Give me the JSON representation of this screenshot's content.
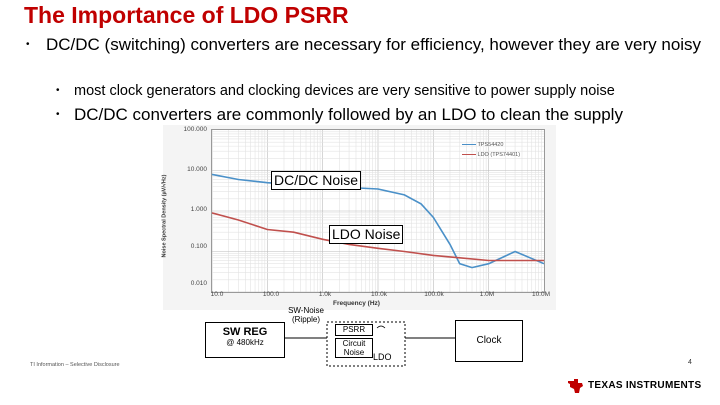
{
  "slide": {
    "title": "The Importance of LDO PSRR",
    "bullets": [
      {
        "bullet": "•",
        "text": "DC/DC (switching) converters are necessary for efficiency, however they are very noisy"
      },
      {
        "bullet": "•",
        "text": "most clock generators and clocking devices are very sensitive to power supply noise"
      },
      {
        "bullet": "•",
        "text": "DC/DC converters are commonly followed by an LDO to clean the supply"
      }
    ]
  },
  "chart": {
    "ylabel": "Noise Spectral Density (µV/√Hz)",
    "xlabel": "Frequency (Hz)",
    "yticks": [
      "100.000",
      "10.000",
      "1.000",
      "0.100",
      "0.010"
    ],
    "xticks": [
      "10.0",
      "100.0",
      "1.0k",
      "10.0k",
      "100.0k",
      "1.0M",
      "10.0M"
    ],
    "legend": [
      "TPS54420",
      "LDO (TPS74401)"
    ],
    "callouts": {
      "dcdc": "DC/DC Noise",
      "ldo": "LDO Noise"
    },
    "colors": {
      "dcdc": "#4a90c8",
      "ldo": "#c0504d"
    }
  },
  "chart_data": {
    "type": "line",
    "title": "",
    "xlabel": "Frequency (Hz)",
    "ylabel": "Noise Spectral Density (µV/√Hz)",
    "x_scale": "log",
    "y_scale": "log",
    "xlim": [
      10,
      10000000
    ],
    "ylim": [
      0.01,
      100
    ],
    "grid": true,
    "legend_position": "top-right",
    "series": [
      {
        "name": "TPS54420",
        "x": [
          10,
          30,
          100,
          300,
          1000,
          3000,
          10000,
          30000,
          60000,
          100000,
          200000,
          300000,
          500000,
          1000000,
          3000000,
          10000000
        ],
        "y": [
          8,
          6,
          5,
          4.5,
          4,
          3.8,
          3.5,
          2.5,
          1.5,
          0.7,
          0.15,
          0.05,
          0.04,
          0.05,
          0.1,
          0.05
        ]
      },
      {
        "name": "LDO (TPS74401)",
        "x": [
          10,
          30,
          100,
          300,
          1000,
          3000,
          10000,
          30000,
          100000,
          300000,
          1000000,
          3000000,
          10000000
        ],
        "y": [
          0.9,
          0.6,
          0.35,
          0.3,
          0.2,
          0.15,
          0.12,
          0.1,
          0.08,
          0.07,
          0.06,
          0.06,
          0.06
        ]
      }
    ]
  },
  "diagram": {
    "swreg_line1": "SW REG",
    "swreg_line2": "@ 480kHz",
    "swnoise_line1": "SW-Noise",
    "swnoise_line2": "(Ripple)",
    "psrr": "PSRR",
    "circuit_line1": "Circuit",
    "circuit_line2": "Noise",
    "ldo": "LDO",
    "clock": "Clock"
  },
  "footer": {
    "left": "TI Information – Selective Disclosure",
    "page": "4",
    "company": "TEXAS INSTRUMENTS"
  }
}
